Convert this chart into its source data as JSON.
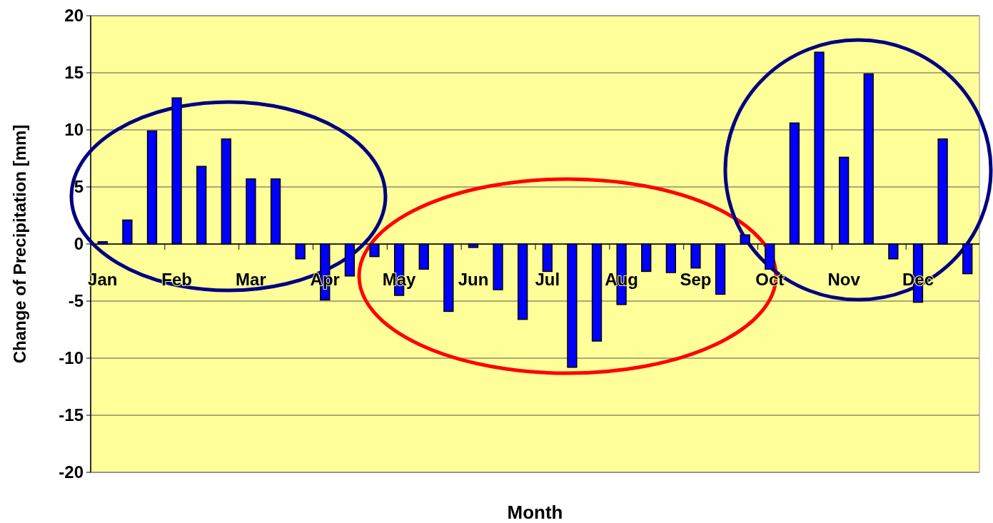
{
  "chart_data": {
    "type": "bar",
    "xlabel": "Month",
    "ylabel": "Change of Precipitation [mm]",
    "categories": [
      "Jan",
      null,
      null,
      "Feb",
      null,
      null,
      "Mar",
      null,
      null,
      "Apr",
      null,
      null,
      "May",
      null,
      null,
      "Jun",
      null,
      null,
      "Jul",
      null,
      null,
      "Aug",
      null,
      null,
      "Sep",
      null,
      null,
      "Oct",
      null,
      null,
      "Nov",
      null,
      null,
      "Dec",
      null,
      null
    ],
    "values": [
      0.2,
      2.1,
      9.9,
      12.8,
      6.8,
      9.2,
      5.7,
      5.7,
      -1.3,
      -4.9,
      -2.8,
      -1.1,
      -4.5,
      -2.2,
      -5.9,
      -0.3,
      -4.0,
      -6.6,
      -2.4,
      -10.8,
      -8.5,
      -5.3,
      -2.4,
      -2.5,
      -2.1,
      -4.4,
      0.8,
      -2.2,
      10.6,
      16.8,
      7.6,
      14.9,
      -1.3,
      -5.1,
      9.2,
      -2.6
    ],
    "color": "#0000ff",
    "ylim": [
      -20,
      20
    ],
    "yticks": [
      -20,
      -15,
      -10,
      -5,
      0,
      5,
      10,
      15,
      20
    ],
    "grid": "y"
  }
}
